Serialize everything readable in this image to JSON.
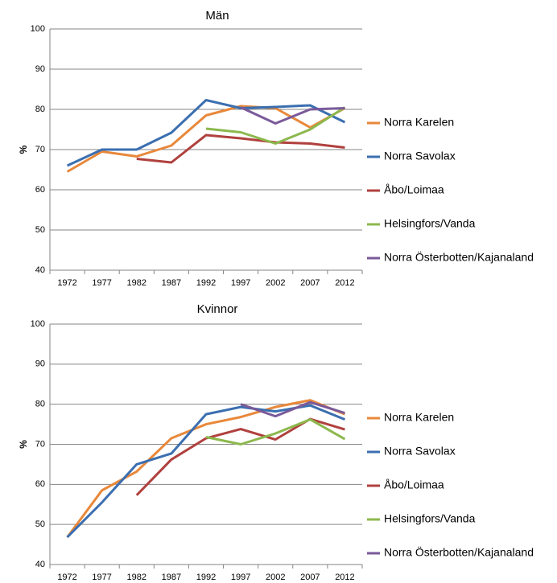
{
  "chart_data": [
    {
      "type": "line",
      "title": "Män",
      "y_label": "%",
      "categories": [
        "1972",
        "1977",
        "1982",
        "1987",
        "1992",
        "1997",
        "2002",
        "2007",
        "2012"
      ],
      "ylim": [
        40,
        100
      ],
      "yticks": [
        40,
        50,
        60,
        70,
        80,
        90,
        100
      ],
      "grid": true,
      "legend": "right",
      "series": [
        {
          "name": "Norra Karelen",
          "color": "#e8883a",
          "values": [
            64.5,
            69.5,
            68.3,
            71,
            78.5,
            80.8,
            80.3,
            75.5,
            80.3
          ]
        },
        {
          "name": "Norra Savolax",
          "color": "#3b6fb0",
          "values": [
            66,
            70,
            70,
            74.2,
            82.3,
            80.3,
            80.6,
            81,
            76.8
          ]
        },
        {
          "name": "Åbo/Loimaa",
          "color": "#b0413e",
          "values": [
            null,
            null,
            67.7,
            66.8,
            73.6,
            72.8,
            71.8,
            71.5,
            70.5
          ]
        },
        {
          "name": "Helsingfors/Vanda",
          "color": "#8cb84d",
          "values": [
            null,
            null,
            null,
            null,
            75.2,
            74.3,
            71.5,
            75,
            80.5
          ]
        },
        {
          "name": "Norra Österbotten/Kajanaland",
          "color": "#7a5a9a",
          "values": [
            null,
            null,
            null,
            null,
            null,
            80.5,
            76.5,
            80,
            80.3
          ]
        }
      ]
    },
    {
      "type": "line",
      "title": "Kvinnor",
      "y_label": "%",
      "categories": [
        "1972",
        "1977",
        "1982",
        "1987",
        "1992",
        "1997",
        "2002",
        "2007",
        "2012"
      ],
      "ylim": [
        40,
        100
      ],
      "yticks": [
        40,
        50,
        60,
        70,
        80,
        90,
        100
      ],
      "grid": true,
      "legend": "right",
      "series": [
        {
          "name": "Norra Karelen",
          "color": "#e8883a",
          "values": [
            46.8,
            58.5,
            63.2,
            71.5,
            75,
            76.8,
            79.3,
            81,
            77.5
          ]
        },
        {
          "name": "Norra Savolax",
          "color": "#3b6fb0",
          "values": [
            46.8,
            55.5,
            65,
            67.7,
            77.5,
            79.3,
            78.2,
            79.7,
            76.2
          ]
        },
        {
          "name": "Åbo/Loimaa",
          "color": "#b0413e",
          "values": [
            null,
            null,
            57.3,
            66.2,
            71.5,
            73.8,
            71.2,
            76.3,
            73.7
          ]
        },
        {
          "name": "Helsingfors/Vanda",
          "color": "#8cb84d",
          "values": [
            null,
            null,
            null,
            null,
            71.8,
            70,
            72.7,
            76.2,
            71.3
          ]
        },
        {
          "name": "Norra Österbotten/Kajanaland",
          "color": "#7a5a9a",
          "values": [
            null,
            null,
            null,
            null,
            null,
            80,
            77,
            80.5,
            77.8
          ]
        }
      ]
    }
  ]
}
